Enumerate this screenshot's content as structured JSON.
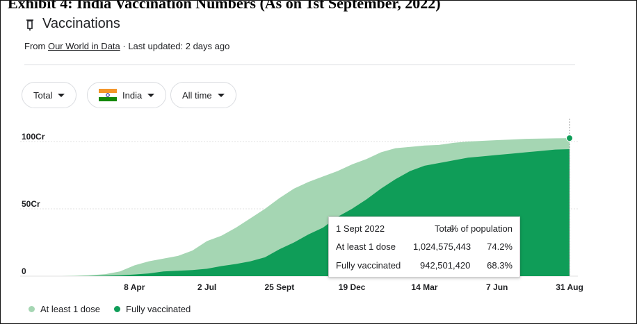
{
  "exhibit_title": "Exhibit 4: India Vaccination Numbers (As on 1st September, 2022)",
  "header": {
    "title": "Vaccinations",
    "source_prefix": "From",
    "source_link": "Our World in Data",
    "updated": "· Last updated: 2 days ago"
  },
  "filters": [
    "Total",
    "India",
    "All time"
  ],
  "tooltip": {
    "date": "1 Sept 2022",
    "col_total": "Total",
    "col_pct": "% of population",
    "rows": [
      [
        "At least 1 dose",
        "1,024,575,443",
        "74.2%"
      ],
      [
        "Fully vaccinated",
        "942,501,420",
        "68.3%"
      ]
    ]
  },
  "chart_data": {
    "type": "area",
    "categories": [
      null,
      null,
      null,
      null,
      null,
      "8 Apr",
      null,
      null,
      null,
      null,
      "2 Jul",
      null,
      null,
      null,
      null,
      "25 Sept",
      null,
      null,
      null,
      null,
      "19 Dec",
      null,
      null,
      null,
      null,
      "14 Mar",
      null,
      null,
      null,
      null,
      "7 Jun",
      null,
      null,
      null,
      null,
      "31 Aug"
    ],
    "series": [
      {
        "name": "At least 1 dose",
        "color": "#a5d6b3",
        "values": [
          0,
          0.3,
          0.7,
          1.5,
          3.5,
          8,
          11,
          13,
          15,
          19,
          26,
          30,
          36,
          43,
          50,
          58,
          65,
          70,
          74,
          78,
          83,
          87,
          92,
          95,
          96,
          97,
          97.5,
          99,
          100,
          100.5,
          101,
          101.5,
          102,
          102.2,
          102.4,
          102.5
        ]
      },
      {
        "name": "Fully vaccinated",
        "color": "#0f9d58",
        "values": [
          0,
          0,
          0.1,
          0.3,
          0.6,
          1.2,
          2,
          3.5,
          4,
          4.5,
          5.5,
          7.5,
          9,
          11,
          14,
          20,
          25,
          31,
          36,
          44,
          50,
          57,
          65,
          72,
          78,
          82,
          84,
          86,
          88,
          89,
          90,
          91,
          92,
          93,
          94,
          94.3
        ]
      }
    ],
    "ylim": [
      0,
      117
    ],
    "yticks": [
      0,
      {
        "value": 50,
        "label": "50Cr"
      },
      {
        "value": 100,
        "label": "100Cr"
      }
    ],
    "grid": true
  }
}
